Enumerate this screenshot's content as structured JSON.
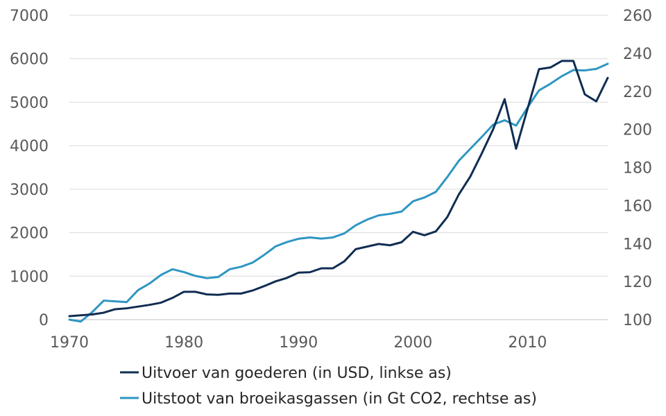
{
  "chart_data": {
    "type": "line",
    "x": [
      1970,
      1971,
      1972,
      1973,
      1974,
      1975,
      1976,
      1977,
      1978,
      1979,
      1980,
      1981,
      1982,
      1983,
      1984,
      1985,
      1986,
      1987,
      1988,
      1989,
      1990,
      1991,
      1992,
      1993,
      1994,
      1995,
      1996,
      1997,
      1998,
      1999,
      2000,
      2001,
      2002,
      2003,
      2004,
      2005,
      2006,
      2007,
      2008,
      2009,
      2010,
      2011,
      2012,
      2013,
      2014,
      2015,
      2016,
      2017
    ],
    "xlim": [
      1970,
      2017
    ],
    "xticks": [
      1970,
      1980,
      1990,
      2000,
      2010
    ],
    "y_left": {
      "ylim": [
        0,
        7000
      ],
      "ticks": [
        0,
        1000,
        2000,
        3000,
        4000,
        5000,
        6000,
        7000
      ]
    },
    "y_right": {
      "ylim": [
        100,
        260
      ],
      "ticks": [
        100,
        120,
        140,
        160,
        180,
        200,
        220,
        240,
        260
      ]
    },
    "grid": true,
    "legend_position": "bottom",
    "series": [
      {
        "name": "Uitvoer van goederen (in USD, linkse as)",
        "axis": "left",
        "color": "#0f2d52",
        "values": [
          80,
          100,
          120,
          160,
          240,
          260,
          300,
          340,
          390,
          500,
          640,
          640,
          580,
          570,
          600,
          600,
          670,
          770,
          880,
          960,
          1080,
          1090,
          1180,
          1180,
          1340,
          1620,
          1680,
          1740,
          1710,
          1780,
          2020,
          1940,
          2030,
          2360,
          2880,
          3290,
          3820,
          4380,
          5070,
          3930,
          4850,
          5760,
          5800,
          5950,
          5950,
          5180,
          5020,
          5560
        ]
      },
      {
        "name": "Uitstoot van broeikasgassen (in Gt CO2, rechtse as)",
        "axis": "right",
        "color": "#2e96c2",
        "values": [
          100,
          99,
          104,
          110,
          109.6,
          109.2,
          115.5,
          119,
          123.5,
          126.5,
          125,
          123,
          121.8,
          122.4,
          126.5,
          127.8,
          130,
          134,
          138.5,
          140.8,
          142.5,
          143.2,
          142.6,
          143.2,
          145.3,
          149.6,
          152.6,
          154.8,
          155.6,
          156.8,
          162.2,
          164.2,
          167.2,
          175,
          183.5,
          189.8,
          196,
          202.5,
          204.8,
          202,
          211.5,
          220.5,
          224,
          228,
          231.2,
          231,
          231.8,
          234.5
        ]
      }
    ]
  }
}
